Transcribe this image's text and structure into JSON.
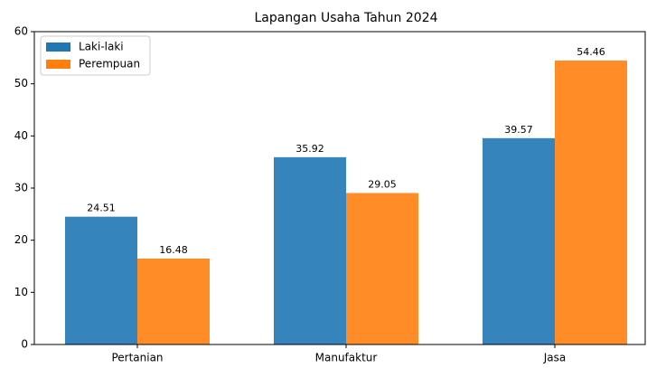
{
  "chart_data": {
    "type": "bar",
    "title": "Lapangan Usaha Tahun 2024",
    "categories": [
      "Pertanian",
      "Manufaktur",
      "Jasa"
    ],
    "series": [
      {
        "name": "Laki-laki",
        "color": "#1f77b4",
        "values": [
          24.51,
          35.92,
          39.57
        ]
      },
      {
        "name": "Perempuan",
        "color": "#ff7f0e",
        "values": [
          16.48,
          29.05,
          54.46
        ]
      }
    ],
    "ylim": [
      0,
      60
    ],
    "yticks": [
      0,
      10,
      20,
      30,
      40,
      50,
      60
    ],
    "legend": "upper left"
  }
}
